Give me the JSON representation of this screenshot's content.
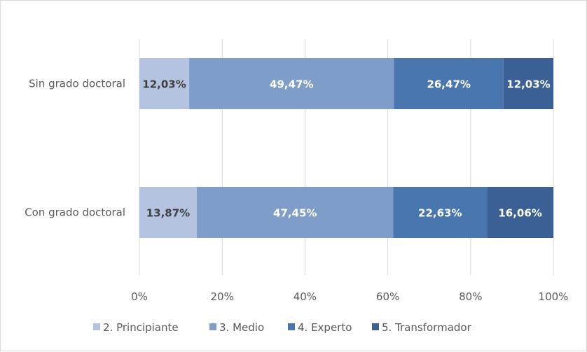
{
  "chart_data": {
    "type": "bar",
    "orientation": "horizontal",
    "stacked": "percent",
    "categories": [
      "Sin grado doctoral",
      "Con grado doctoral"
    ],
    "series": [
      {
        "name": "2. Principiante",
        "values": [
          12.03,
          13.87
        ],
        "labels": [
          "12,03%",
          "13,87%"
        ],
        "color": "#b4c3df",
        "label_color": "#404040"
      },
      {
        "name": "3. Medio",
        "values": [
          49.47,
          47.45
        ],
        "labels": [
          "49,47%",
          "47,45%"
        ],
        "color": "#7f9dc9",
        "label_color": "#ffffff"
      },
      {
        "name": "4. Experto",
        "values": [
          26.47,
          22.63
        ],
        "labels": [
          "26,47%",
          "22,63%"
        ],
        "color": "#4a76b0",
        "label_color": "#ffffff"
      },
      {
        "name": "5. Transformador",
        "values": [
          12.03,
          16.06
        ],
        "labels": [
          "12,03%",
          "16,06%"
        ],
        "color": "#3b6095",
        "label_color": "#ffffff"
      }
    ],
    "xlim": [
      0,
      100
    ],
    "x_ticks": [
      "0%",
      "20%",
      "40%",
      "60%",
      "80%",
      "100%"
    ],
    "grid": "vertical",
    "legend_position": "bottom"
  }
}
